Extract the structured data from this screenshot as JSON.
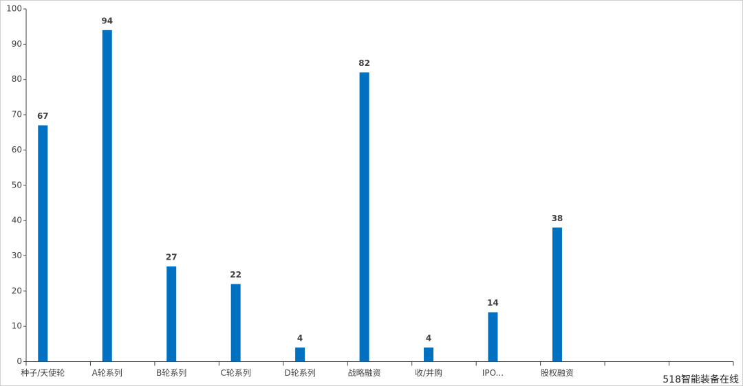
{
  "chart_data": {
    "type": "bar",
    "categories": [
      "种子/天使轮",
      "A轮系列",
      "B轮系列",
      "C轮系列",
      "D轮系列",
      "战略融资",
      "收/并购",
      "IPO...",
      "股权融资",
      null,
      null
    ],
    "values": [
      67,
      94,
      27,
      22,
      4,
      82,
      4,
      14,
      38,
      null,
      null
    ],
    "color": "#0070c0",
    "ylim": [
      0,
      100
    ],
    "yticks": [
      0,
      10,
      20,
      30,
      40,
      50,
      60,
      70,
      80,
      90,
      100
    ],
    "grid": false,
    "watermark": "518智能装备在线"
  }
}
